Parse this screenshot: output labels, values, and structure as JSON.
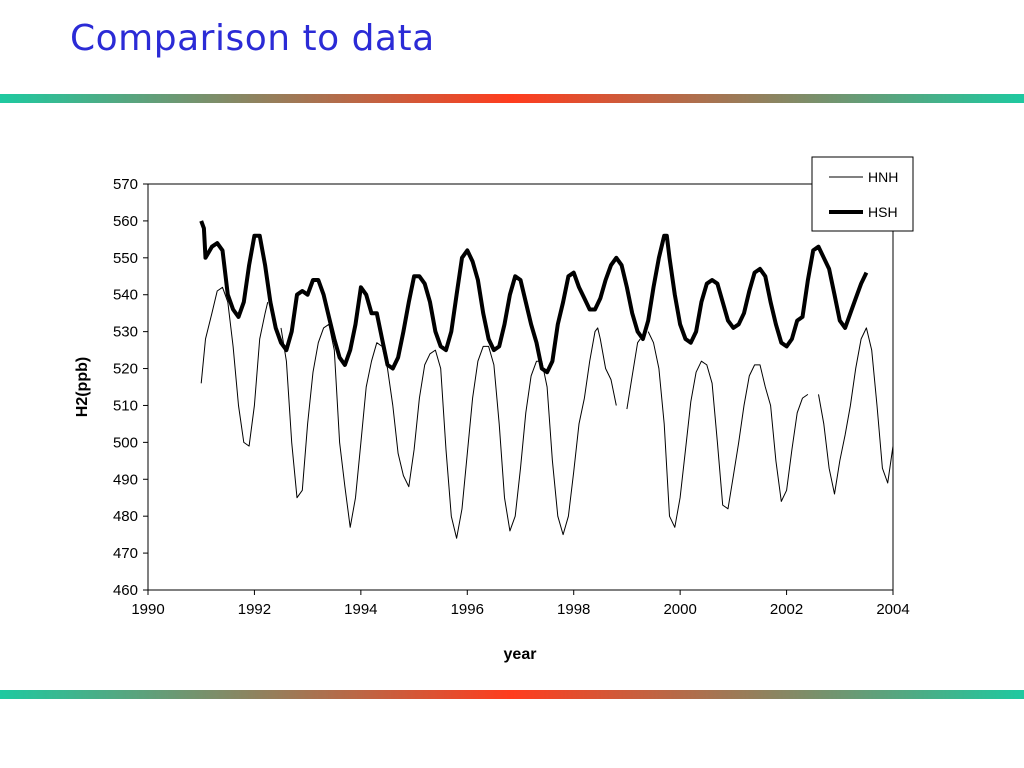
{
  "slide": {
    "title": "Comparison to data",
    "title_color": "#2b2bd6",
    "rule_gradient": [
      "#1ec9a0",
      "#ff3c1e",
      "#1ec9a0"
    ]
  },
  "chart_data": {
    "type": "line",
    "title": "",
    "xlabel": "year",
    "ylabel": "H2(ppb)",
    "xlim": [
      1990,
      2004
    ],
    "ylim": [
      460,
      570
    ],
    "xticks": [
      1990,
      1992,
      1994,
      1996,
      1998,
      2000,
      2002,
      2004
    ],
    "yticks": [
      460,
      470,
      480,
      490,
      500,
      510,
      520,
      530,
      540,
      550,
      560,
      570
    ],
    "grid": false,
    "legend_position": "top-right",
    "series": [
      {
        "name": "HNH",
        "style": "thin",
        "color": "#000000",
        "points": [
          [
            1991.0,
            516
          ],
          [
            1991.08,
            528
          ],
          [
            1991.2,
            535
          ],
          [
            1991.3,
            541
          ],
          [
            1991.4,
            542
          ],
          [
            1991.5,
            538
          ],
          [
            1991.6,
            526
          ],
          [
            1991.7,
            510
          ],
          [
            1991.8,
            500
          ],
          [
            1991.9,
            499
          ],
          [
            1992.0,
            510
          ],
          [
            1992.1,
            528
          ],
          [
            1992.2,
            535
          ],
          [
            1992.25,
            538
          ],
          null,
          [
            1992.5,
            531
          ],
          [
            1992.6,
            522
          ],
          [
            1992.7,
            500
          ],
          [
            1992.8,
            485
          ],
          [
            1992.9,
            487
          ],
          [
            1993.0,
            505
          ],
          [
            1993.1,
            519
          ],
          [
            1993.2,
            527
          ],
          [
            1993.3,
            531
          ],
          [
            1993.4,
            532
          ],
          [
            1993.5,
            525
          ],
          [
            1993.6,
            500
          ],
          [
            1993.7,
            488
          ],
          [
            1993.8,
            477
          ],
          [
            1993.9,
            485
          ],
          [
            1994.0,
            500
          ],
          [
            1994.1,
            515
          ],
          [
            1994.2,
            522
          ],
          [
            1994.3,
            527
          ],
          [
            1994.4,
            526
          ],
          [
            1994.5,
            520
          ],
          [
            1994.6,
            510
          ],
          [
            1994.7,
            497
          ],
          [
            1994.8,
            491
          ],
          [
            1994.9,
            488
          ],
          [
            1995.0,
            498
          ],
          [
            1995.1,
            512
          ],
          [
            1995.2,
            521
          ],
          [
            1995.3,
            524
          ],
          [
            1995.4,
            525
          ],
          [
            1995.5,
            520
          ],
          [
            1995.6,
            498
          ],
          [
            1995.7,
            480
          ],
          [
            1995.8,
            474
          ],
          [
            1995.9,
            482
          ],
          [
            1996.0,
            497
          ],
          [
            1996.1,
            512
          ],
          [
            1996.2,
            522
          ],
          [
            1996.3,
            526
          ],
          [
            1996.4,
            526
          ],
          [
            1996.5,
            521
          ],
          [
            1996.6,
            505
          ],
          [
            1996.7,
            485
          ],
          [
            1996.8,
            476
          ],
          [
            1996.9,
            480
          ],
          [
            1997.0,
            493
          ],
          [
            1997.1,
            508
          ],
          [
            1997.2,
            518
          ],
          [
            1997.3,
            522
          ],
          [
            1997.4,
            522
          ],
          [
            1997.5,
            515
          ],
          [
            1997.6,
            495
          ],
          [
            1997.7,
            480
          ],
          [
            1997.8,
            475
          ],
          [
            1997.9,
            480
          ],
          [
            1998.0,
            492
          ],
          [
            1998.1,
            505
          ],
          [
            1998.2,
            512
          ],
          [
            1998.3,
            522
          ],
          [
            1998.4,
            530
          ],
          [
            1998.45,
            531
          ],
          [
            1998.5,
            528
          ],
          [
            1998.6,
            520
          ],
          [
            1998.7,
            517
          ],
          [
            1998.8,
            510
          ],
          null,
          [
            1999.0,
            509
          ],
          [
            1999.1,
            518
          ],
          [
            1999.2,
            527
          ],
          [
            1999.25,
            528
          ],
          null,
          [
            1999.4,
            530
          ],
          [
            1999.5,
            527
          ],
          [
            1999.6,
            520
          ],
          [
            1999.7,
            505
          ],
          [
            1999.8,
            480
          ],
          [
            1999.9,
            477
          ],
          [
            2000.0,
            485
          ],
          [
            2000.1,
            498
          ],
          [
            2000.2,
            511
          ],
          [
            2000.3,
            519
          ],
          [
            2000.4,
            522
          ],
          [
            2000.5,
            521
          ],
          [
            2000.6,
            516
          ],
          [
            2000.7,
            500
          ],
          [
            2000.8,
            483
          ],
          [
            2000.9,
            482
          ],
          [
            2001.0,
            491
          ],
          [
            2001.1,
            500
          ],
          [
            2001.2,
            510
          ],
          [
            2001.3,
            518
          ],
          [
            2001.4,
            521
          ],
          [
            2001.5,
            521
          ],
          [
            2001.6,
            515
          ],
          [
            2001.7,
            510
          ],
          [
            2001.8,
            495
          ],
          [
            2001.9,
            484
          ],
          [
            2002.0,
            487
          ],
          [
            2002.1,
            498
          ],
          [
            2002.2,
            508
          ],
          [
            2002.3,
            512
          ],
          [
            2002.4,
            513
          ],
          null,
          [
            2002.6,
            513
          ],
          [
            2002.7,
            505
          ],
          [
            2002.8,
            493
          ],
          [
            2002.9,
            486
          ],
          [
            2003.0,
            495
          ],
          [
            2003.1,
            502
          ],
          [
            2003.2,
            510
          ],
          [
            2003.3,
            520
          ],
          [
            2003.4,
            528
          ],
          [
            2003.5,
            531
          ],
          [
            2003.6,
            525
          ],
          [
            2003.7,
            510
          ],
          [
            2003.8,
            493
          ],
          [
            2003.9,
            489
          ],
          [
            2004.0,
            499
          ]
        ]
      },
      {
        "name": "HSH",
        "style": "thick",
        "color": "#000000",
        "points": [
          [
            1991.0,
            560
          ],
          [
            1991.05,
            558
          ],
          [
            1991.08,
            550
          ],
          [
            1991.2,
            553
          ],
          [
            1991.3,
            554
          ],
          [
            1991.4,
            552
          ],
          [
            1991.5,
            540
          ],
          [
            1991.6,
            536
          ],
          [
            1991.7,
            534
          ],
          [
            1991.8,
            538
          ],
          [
            1991.9,
            548
          ],
          [
            1992.0,
            556
          ],
          [
            1992.1,
            556
          ],
          [
            1992.2,
            548
          ],
          [
            1992.3,
            538
          ],
          [
            1992.4,
            531
          ],
          [
            1992.5,
            527
          ],
          [
            1992.6,
            525
          ],
          [
            1992.7,
            530
          ],
          [
            1992.8,
            540
          ],
          [
            1992.9,
            541
          ],
          [
            1993.0,
            540
          ],
          [
            1993.1,
            544
          ],
          [
            1993.2,
            544
          ],
          [
            1993.3,
            540
          ],
          [
            1993.4,
            534
          ],
          [
            1993.5,
            528
          ],
          [
            1993.6,
            523
          ],
          [
            1993.7,
            521
          ],
          [
            1993.8,
            525
          ],
          [
            1993.9,
            532
          ],
          [
            1994.0,
            542
          ],
          [
            1994.1,
            540
          ],
          [
            1994.2,
            535
          ],
          [
            1994.3,
            535
          ],
          [
            1994.4,
            528
          ],
          [
            1994.5,
            521
          ],
          [
            1994.6,
            520
          ],
          [
            1994.7,
            523
          ],
          [
            1994.8,
            530
          ],
          [
            1994.9,
            538
          ],
          [
            1995.0,
            545
          ],
          [
            1995.1,
            545
          ],
          [
            1995.2,
            543
          ],
          [
            1995.3,
            538
          ],
          [
            1995.4,
            530
          ],
          [
            1995.5,
            526
          ],
          [
            1995.6,
            525
          ],
          [
            1995.7,
            530
          ],
          [
            1995.8,
            540
          ],
          [
            1995.9,
            550
          ],
          [
            1996.0,
            552
          ],
          [
            1996.1,
            549
          ],
          [
            1996.2,
            544
          ],
          [
            1996.3,
            535
          ],
          [
            1996.4,
            528
          ],
          [
            1996.5,
            525
          ],
          [
            1996.6,
            526
          ],
          [
            1996.7,
            532
          ],
          [
            1996.8,
            540
          ],
          [
            1996.9,
            545
          ],
          [
            1997.0,
            544
          ],
          [
            1997.1,
            538
          ],
          [
            1997.2,
            532
          ],
          [
            1997.3,
            527
          ],
          [
            1997.4,
            520
          ],
          [
            1997.5,
            519
          ],
          [
            1997.6,
            522
          ],
          [
            1997.7,
            532
          ],
          [
            1997.8,
            538
          ],
          [
            1997.9,
            545
          ],
          [
            1998.0,
            546
          ],
          [
            1998.1,
            542
          ],
          [
            1998.2,
            539
          ],
          [
            1998.3,
            536
          ],
          [
            1998.4,
            536
          ],
          [
            1998.5,
            539
          ],
          [
            1998.6,
            544
          ],
          [
            1998.7,
            548
          ],
          [
            1998.8,
            550
          ],
          [
            1998.9,
            548
          ],
          [
            1999.0,
            542
          ],
          [
            1999.1,
            535
          ],
          [
            1999.2,
            530
          ],
          [
            1999.3,
            528
          ],
          [
            1999.4,
            533
          ],
          [
            1999.5,
            542
          ],
          [
            1999.6,
            550
          ],
          [
            1999.7,
            556
          ],
          [
            1999.75,
            556
          ],
          [
            1999.8,
            550
          ],
          [
            1999.9,
            540
          ],
          [
            2000.0,
            532
          ],
          [
            2000.1,
            528
          ],
          [
            2000.2,
            527
          ],
          [
            2000.3,
            530
          ],
          [
            2000.4,
            538
          ],
          [
            2000.5,
            543
          ],
          [
            2000.6,
            544
          ],
          [
            2000.7,
            543
          ],
          [
            2000.8,
            538
          ],
          [
            2000.9,
            533
          ],
          [
            2001.0,
            531
          ],
          [
            2001.1,
            532
          ],
          [
            2001.2,
            535
          ],
          [
            2001.3,
            541
          ],
          [
            2001.4,
            546
          ],
          [
            2001.5,
            547
          ],
          [
            2001.6,
            545
          ],
          [
            2001.7,
            538
          ],
          [
            2001.8,
            532
          ],
          [
            2001.9,
            527
          ],
          [
            2002.0,
            526
          ],
          [
            2002.1,
            528
          ],
          [
            2002.2,
            533
          ],
          [
            2002.3,
            534
          ],
          [
            2002.4,
            544
          ],
          [
            2002.5,
            552
          ],
          [
            2002.6,
            553
          ],
          [
            2002.7,
            550
          ],
          [
            2002.8,
            547
          ],
          [
            2002.9,
            540
          ],
          [
            2003.0,
            533
          ],
          [
            2003.1,
            531
          ],
          [
            2003.2,
            535
          ],
          [
            2003.3,
            539
          ],
          [
            2003.4,
            543
          ],
          [
            2003.5,
            546
          ]
        ]
      }
    ]
  }
}
